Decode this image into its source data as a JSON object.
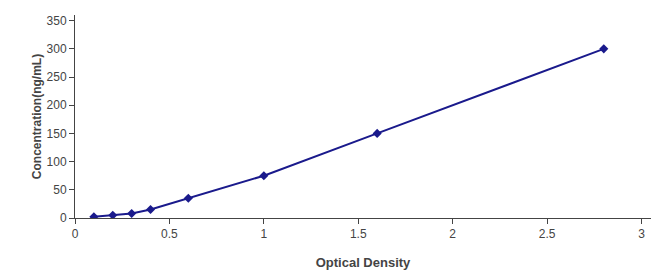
{
  "chart_data": {
    "type": "line",
    "xlabel": "Optical Density",
    "ylabel": "Concentration(ng/mL)",
    "x": [
      0.1,
      0.2,
      0.3,
      0.4,
      0.6,
      1.0,
      1.6,
      2.8
    ],
    "values": [
      2,
      5,
      8,
      15,
      35,
      75,
      150,
      300
    ],
    "color": "#1a1a8c",
    "marker": "diamond",
    "xlim": [
      0,
      3.05
    ],
    "ylim": [
      0,
      360
    ],
    "xticks": [
      0,
      0.5,
      1,
      1.5,
      2,
      2.5,
      3
    ],
    "yticks": [
      0,
      50,
      100,
      150,
      200,
      250,
      300,
      350
    ],
    "grid": false
  }
}
